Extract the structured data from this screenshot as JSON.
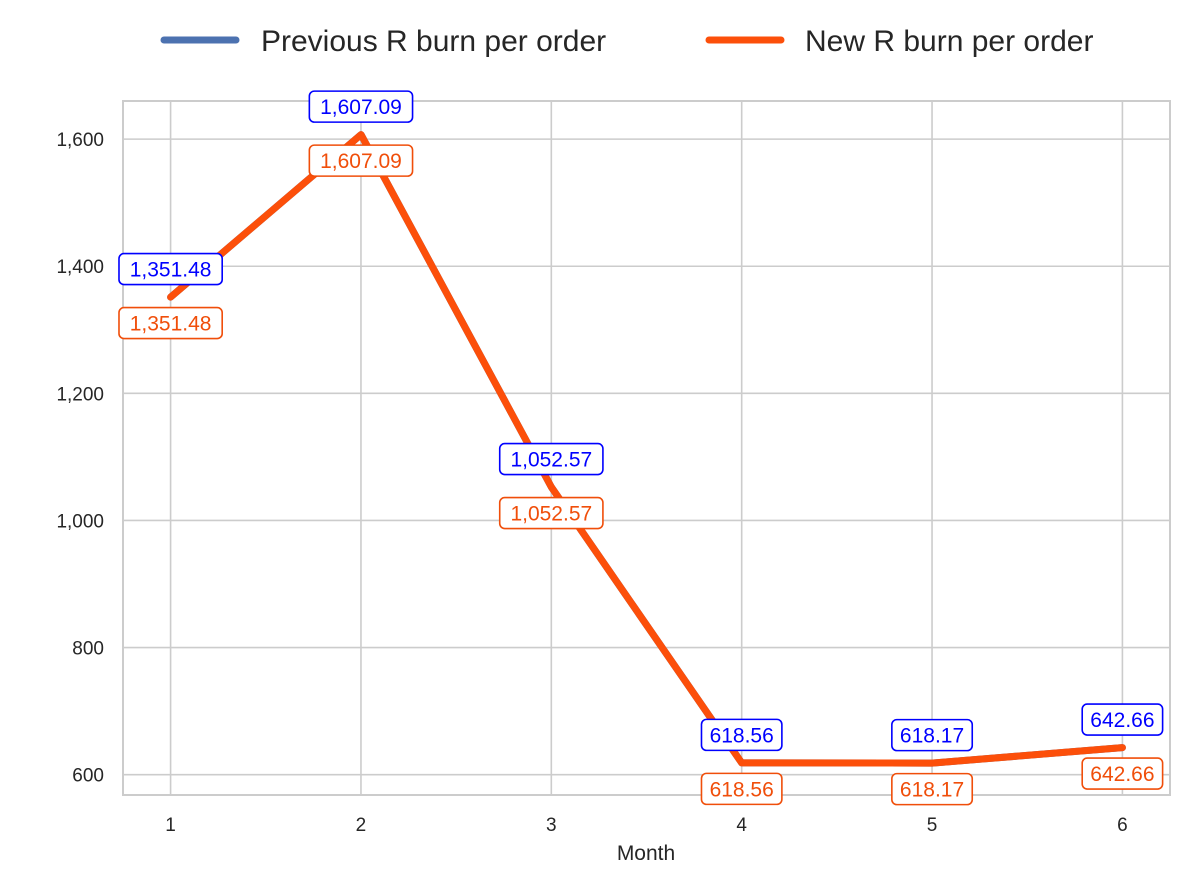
{
  "chart_data": {
    "type": "line",
    "title": "",
    "xlabel": "Month",
    "ylabel": "",
    "x": [
      1,
      2,
      3,
      4,
      5,
      6
    ],
    "x_tick_labels": [
      "1",
      "2",
      "3",
      "4",
      "5",
      "6"
    ],
    "xlim": [
      0.75,
      6.25
    ],
    "ylim": [
      568,
      1660
    ],
    "y_ticks": [
      600,
      800,
      1000,
      1200,
      1400,
      1600
    ],
    "y_tick_labels": [
      "600",
      "800",
      "1,000",
      "1,200",
      "1,400",
      "1,600"
    ],
    "grid": true,
    "legend_position": "top-center",
    "series": [
      {
        "name": "Previous R burn per order",
        "color": "#4c72b0",
        "label_color": "#0000ff",
        "values": [
          1351.48,
          1607.09,
          1052.57,
          618.56,
          618.17,
          642.66
        ],
        "labels": [
          "1,351.48",
          "1,607.09",
          "1,052.57",
          "618.56",
          "618.17",
          "642.66"
        ]
      },
      {
        "name": "New R burn per order",
        "color": "#fc4f0a",
        "label_color": "#f04e0a",
        "values": [
          1351.48,
          1607.09,
          1052.57,
          618.56,
          618.17,
          642.66
        ],
        "labels": [
          "1,351.48",
          "1,607.09",
          "1,052.57",
          "618.56",
          "618.17",
          "642.66"
        ]
      }
    ]
  }
}
